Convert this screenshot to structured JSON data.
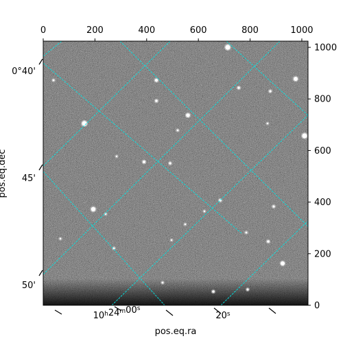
{
  "chart_data": {
    "type": "image",
    "colormap": "gray",
    "grid_color": "#00e5e5",
    "axis_color": "#000000",
    "xlabel": "pos.eq.ra",
    "ylabel": "pos.eq.dec",
    "top_axis": {
      "ticks": [
        0,
        200,
        400,
        600,
        800,
        1000
      ],
      "labels": [
        "0",
        "200",
        "400",
        "600",
        "800",
        "1000"
      ]
    },
    "right_axis": {
      "ticks": [
        0,
        200,
        400,
        600,
        800,
        1000
      ],
      "labels": [
        "0",
        "200",
        "400",
        "600",
        "800",
        "1000"
      ]
    },
    "bottom_axis": {
      "labels": [
        "10h24m00s",
        "20s"
      ]
    },
    "left_axis": {
      "labels": [
        "0°40'",
        "45'",
        "50'"
      ]
    },
    "xlim": [
      0,
      1024
    ],
    "ylim": [
      0,
      1024
    ]
  }
}
